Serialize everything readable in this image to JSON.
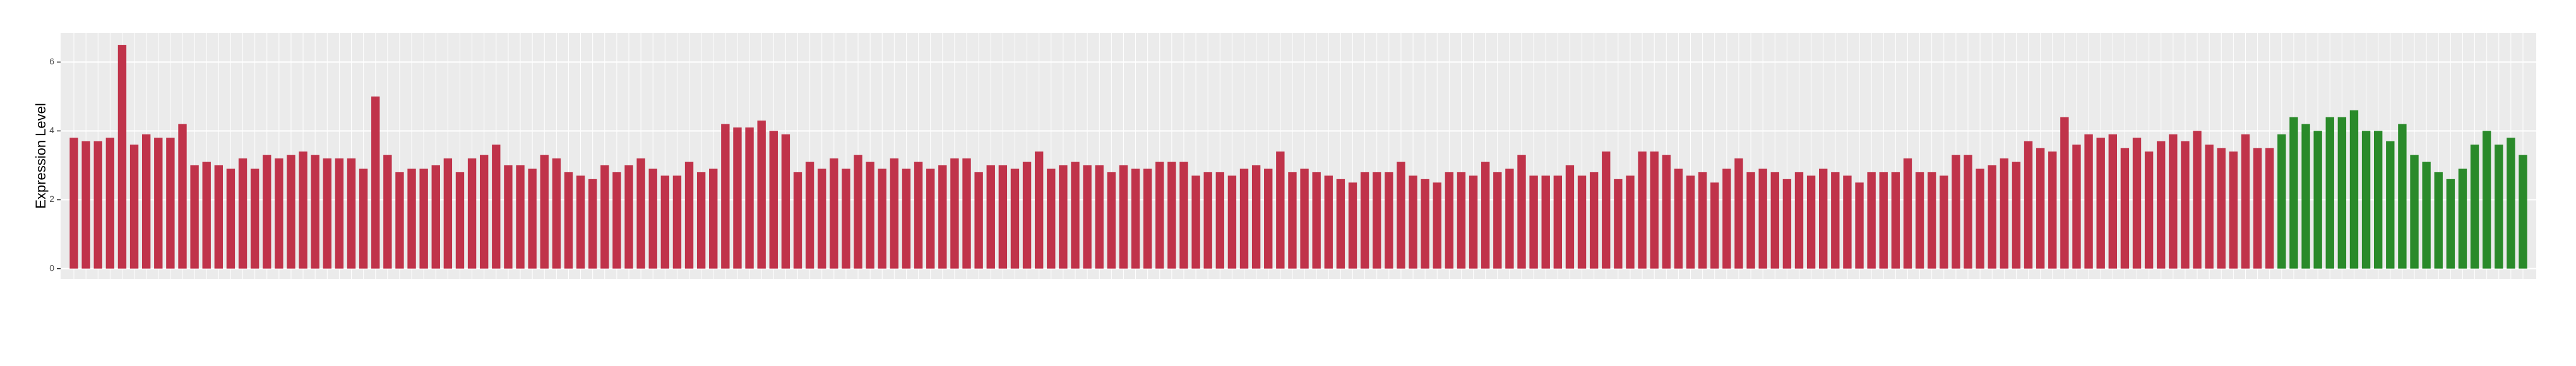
{
  "chart_data": {
    "type": "bar",
    "y_label": "Expression Level",
    "ylim": [
      -0.3,
      6.85
    ],
    "yticks": [
      0,
      2,
      4,
      6
    ],
    "grid": true,
    "series": [
      {
        "color": "#c0334a",
        "values": [
          3.8,
          3.7,
          3.7,
          3.8,
          6.5,
          3.6,
          3.9,
          3.8,
          3.8,
          4.2,
          3.0,
          3.1,
          3.0,
          2.9,
          3.2,
          2.9,
          3.3,
          3.2,
          3.3,
          3.4,
          3.3,
          3.2,
          3.2,
          3.2,
          2.9,
          5.0,
          3.3,
          2.8,
          2.9,
          2.9,
          3.0,
          3.2,
          2.8,
          3.2,
          3.3,
          3.6,
          3.0,
          3.0,
          2.9,
          3.3,
          3.2,
          2.8,
          2.7,
          2.6,
          3.0,
          2.8,
          3.0,
          3.2,
          2.9,
          2.7,
          2.7,
          3.1,
          2.8,
          2.9,
          4.2,
          4.1,
          4.1,
          4.3,
          4.0,
          3.9,
          2.8,
          3.1,
          2.9,
          3.2,
          2.9,
          3.3,
          3.1,
          2.9,
          3.2,
          2.9,
          3.1,
          2.9,
          3.0,
          3.2,
          3.2,
          2.8,
          3.0,
          3.0,
          2.9,
          3.1,
          3.4,
          2.9,
          3.0,
          3.1,
          3.0,
          3.0,
          2.8,
          3.0,
          2.9,
          2.9,
          3.1,
          3.1,
          3.1,
          2.7,
          2.8,
          2.8,
          2.7,
          2.9,
          3.0,
          2.9,
          3.4,
          2.8,
          2.9,
          2.8,
          2.7,
          2.6,
          2.5,
          2.8,
          2.8,
          2.8,
          3.1,
          2.7,
          2.6,
          2.5,
          2.8,
          2.8,
          2.7,
          3.1,
          2.8,
          2.9,
          3.3,
          2.7,
          2.7,
          2.7,
          3.0,
          2.7,
          2.8,
          3.4,
          2.6,
          2.7,
          3.4,
          3.4,
          3.3,
          2.9,
          2.7,
          2.8,
          2.5,
          2.9,
          3.2,
          2.8,
          2.9,
          2.8,
          2.6,
          2.8,
          2.7,
          2.9,
          2.8,
          2.7,
          2.5,
          2.8,
          2.8,
          2.8,
          3.2,
          2.8,
          2.8,
          2.7,
          3.3,
          3.3,
          2.9,
          3.0,
          3.2,
          3.1,
          3.7,
          3.5,
          3.4,
          4.4,
          3.6,
          3.9,
          3.8,
          3.9,
          3.5,
          3.8,
          3.4,
          3.7,
          3.9,
          3.7,
          4.0,
          3.6,
          3.5,
          3.4,
          3.9,
          3.5,
          3.5,
          null,
          null,
          null,
          null,
          null,
          null,
          null,
          null,
          null,
          null,
          null,
          null,
          null,
          null,
          null,
          null,
          null,
          null,
          null,
          null,
          null
        ]
      },
      {
        "color": "#2a8a2a",
        "values": [
          null,
          null,
          null,
          null,
          null,
          null,
          null,
          null,
          null,
          null,
          null,
          null,
          null,
          null,
          null,
          null,
          null,
          null,
          null,
          null,
          null,
          null,
          null,
          null,
          null,
          null,
          null,
          null,
          null,
          null,
          null,
          null,
          null,
          null,
          null,
          null,
          null,
          null,
          null,
          null,
          null,
          null,
          null,
          null,
          null,
          null,
          null,
          null,
          null,
          null,
          null,
          null,
          null,
          null,
          null,
          null,
          null,
          null,
          null,
          null,
          null,
          null,
          null,
          null,
          null,
          null,
          null,
          null,
          null,
          null,
          null,
          null,
          null,
          null,
          null,
          null,
          null,
          null,
          null,
          null,
          null,
          null,
          null,
          null,
          null,
          null,
          null,
          null,
          null,
          null,
          null,
          null,
          null,
          null,
          null,
          null,
          null,
          null,
          null,
          null,
          null,
          null,
          null,
          null,
          null,
          null,
          null,
          null,
          null,
          null,
          null,
          null,
          null,
          null,
          null,
          null,
          null,
          null,
          null,
          null,
          null,
          null,
          null,
          null,
          null,
          null,
          null,
          null,
          null,
          null,
          null,
          null,
          null,
          null,
          null,
          null,
          null,
          null,
          null,
          null,
          null,
          null,
          null,
          null,
          null,
          null,
          null,
          null,
          null,
          null,
          null,
          null,
          null,
          null,
          null,
          null,
          null,
          null,
          null,
          null,
          null,
          null,
          null,
          null,
          null,
          null,
          null,
          null,
          null,
          null,
          null,
          null,
          null,
          null,
          null,
          null,
          null,
          null,
          null,
          null,
          null,
          null,
          null,
          3.9,
          4.4,
          4.2,
          4.0,
          4.4,
          4.4,
          4.6,
          4.0,
          4.0,
          3.7,
          4.2,
          3.3,
          3.1,
          2.8,
          2.6,
          2.9,
          3.6,
          4.0,
          3.6,
          3.8,
          3.3
        ]
      }
    ]
  }
}
